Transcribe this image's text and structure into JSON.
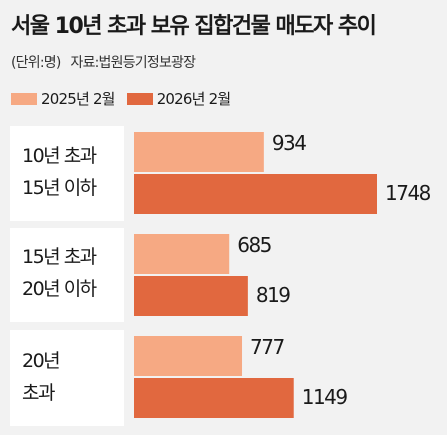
{
  "title": "서울 10년 초과 보유 집합건물 매도자 추이",
  "unit_note": "(단위:명)",
  "source_note": "자료:법원등기정보광장",
  "colors": {
    "series_2025": "#f6a983",
    "series_2026": "#e1683f",
    "panel": "#ffffff",
    "background": "#f2f2f2"
  },
  "chart_data": {
    "type": "bar",
    "orientation": "horizontal",
    "title": "서울 10년 초과 보유 집합건물 매도자 추이",
    "categories": [
      {
        "line1": "10년 초과",
        "line2": "15년 이하"
      },
      {
        "line1": "15년 초과",
        "line2": "20년 이하"
      },
      {
        "line1": "20년",
        "line2": "초과"
      }
    ],
    "series": [
      {
        "name": "2025년 2월",
        "values": [
          934,
          685,
          777
        ]
      },
      {
        "name": "2026년 2월",
        "values": [
          1748,
          819,
          1149
        ]
      }
    ],
    "value_labels": [
      [
        "934",
        "685",
        "777"
      ],
      [
        "1748",
        "819",
        "1149"
      ]
    ],
    "xlim": [
      0,
      1748
    ],
    "grid": false,
    "legend_position": "top-left"
  }
}
